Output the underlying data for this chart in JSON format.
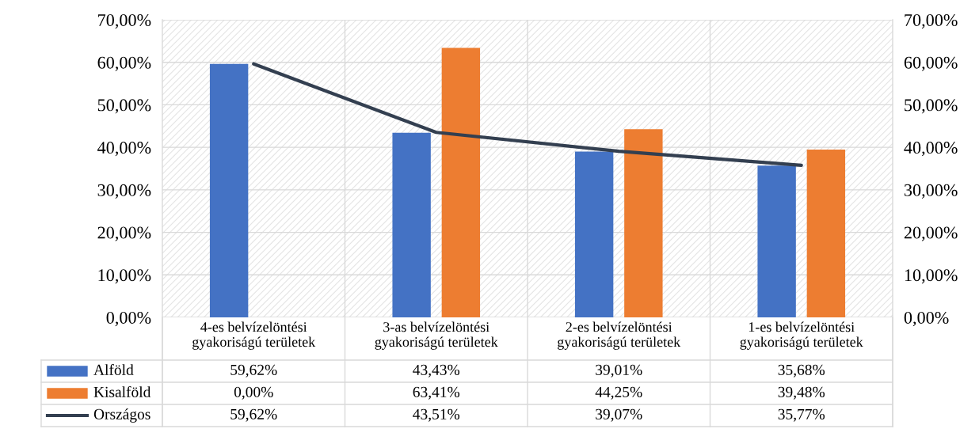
{
  "chart_data": {
    "type": "bar",
    "categories": [
      "4-es belvízelöntési\ngyakoriságú területek",
      "3-as belvízelöntési\ngyakoriságú területek",
      "2-es belvízelöntési\ngyakoriságú területek",
      "1-es belvízelöntési\ngyakoriságú területek"
    ],
    "series": [
      {
        "name": "Alföld",
        "color": "#4472c4",
        "values": [
          59.62,
          43.43,
          39.01,
          35.68
        ],
        "value_labels": [
          "59,62%",
          "43,43%",
          "39,01%",
          "35,68%"
        ]
      },
      {
        "name": "Kisalföld",
        "color": "#ed7d31",
        "values": [
          0.0,
          63.41,
          44.25,
          39.48
        ],
        "value_labels": [
          "0,00%",
          "63,41%",
          "44,25%",
          "39,48%"
        ]
      },
      {
        "name": "Országos",
        "type": "line",
        "color": "#333f50",
        "values": [
          59.62,
          43.51,
          39.07,
          35.77
        ],
        "value_labels": [
          "59,62%",
          "43,51%",
          "39,07%",
          "35,77%"
        ]
      }
    ],
    "ylim": [
      0,
      70
    ],
    "yticks": [
      {
        "value": 0,
        "label": "0,00%"
      },
      {
        "value": 10,
        "label": "10,00%"
      },
      {
        "value": 20,
        "label": "20,00%"
      },
      {
        "value": 30,
        "label": "30,00%"
      },
      {
        "value": 40,
        "label": "40,00%"
      },
      {
        "value": 50,
        "label": "50,00%"
      },
      {
        "value": 60,
        "label": "60,00%"
      },
      {
        "value": 70,
        "label": "70,00%"
      }
    ],
    "y2lim": [
      0,
      70
    ],
    "y2ticks": [
      {
        "value": 0,
        "label": "0,00%"
      },
      {
        "value": 10,
        "label": "10,00%"
      },
      {
        "value": 20,
        "label": "20,00%"
      },
      {
        "value": 30,
        "label": "30,00%"
      },
      {
        "value": 40,
        "label": "40,00%"
      },
      {
        "value": 50,
        "label": "50,00%"
      },
      {
        "value": 60,
        "label": "60,00%"
      },
      {
        "value": 70,
        "label": "70,00%"
      }
    ],
    "grid": true,
    "legend": "bottom",
    "marker": "none",
    "line_style": "solid"
  }
}
